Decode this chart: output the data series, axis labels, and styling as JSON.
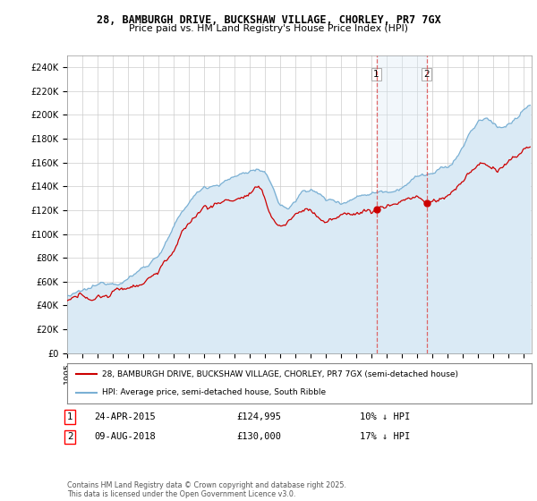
{
  "title1": "28, BAMBURGH DRIVE, BUCKSHAW VILLAGE, CHORLEY, PR7 7GX",
  "title2": "Price paid vs. HM Land Registry's House Price Index (HPI)",
  "ylim": [
    0,
    250000
  ],
  "xlim_start": 1995.0,
  "xlim_end": 2025.5,
  "hpi_color": "#7ab0d4",
  "price_color": "#cc0000",
  "hpi_fill_color": "#daeaf5",
  "span_fill_color": "#daeaf5",
  "marker1_date": 2015.31,
  "marker2_date": 2018.6,
  "marker1_price": 124995,
  "marker2_price": 130000,
  "legend_line1": "28, BAMBURGH DRIVE, BUCKSHAW VILLAGE, CHORLEY, PR7 7GX (semi-detached house)",
  "legend_line2": "HPI: Average price, semi-detached house, South Ribble",
  "note1_label": "1",
  "note1_date": "24-APR-2015",
  "note1_price": "£124,995",
  "note1_hpi": "10% ↓ HPI",
  "note2_label": "2",
  "note2_date": "09-AUG-2018",
  "note2_price": "£130,000",
  "note2_hpi": "17% ↓ HPI",
  "footer": "Contains HM Land Registry data © Crown copyright and database right 2025.\nThis data is licensed under the Open Government Licence v3.0.",
  "bg_color": "#ffffff",
  "grid_color": "#cccccc"
}
